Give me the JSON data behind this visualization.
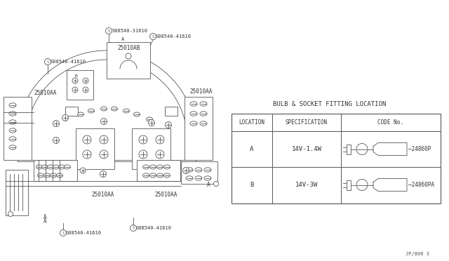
{
  "bg_color": "#ffffff",
  "line_color": "#555555",
  "title": "BULB & SOCKET FITTING LOCATION",
  "table_headers": [
    "LOCATION",
    "SPECIFICATION",
    "CODE No."
  ],
  "table_rows": [
    [
      "A",
      "14V-1.4W",
      "24860P"
    ],
    [
      "B",
      "14V-3W",
      "24860PA"
    ]
  ],
  "labels": {
    "s31610": "S08540-31610",
    "s41610_top": "S08540-41610",
    "s41610_left": "S08540-41610",
    "s41610_botL": "S08540-41610",
    "s41610_botR": "S08540-41610",
    "ab": "25010AB",
    "aa_topL": "25010AA",
    "aa_topR": "25010AA",
    "aa_botL": "25010AA",
    "aa_botR": "25010AA"
  },
  "note": "JP/800 3"
}
